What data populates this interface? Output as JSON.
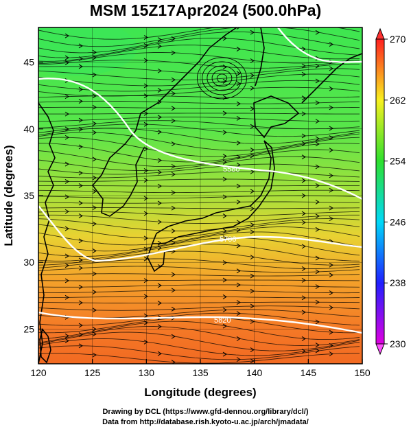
{
  "title": "MSM 15Z17Apr2024 (500.0hPa)",
  "axes": {
    "xlabel": "Longitude (degrees)",
    "ylabel": "Latitude  (degrees)",
    "xticks": [
      "120",
      "125",
      "130",
      "135",
      "140",
      "145",
      "150"
    ],
    "yticks": [
      "25",
      "30",
      "35",
      "40",
      "45"
    ],
    "xrange": [
      120,
      150
    ],
    "yrange": [
      22.4,
      47.6
    ]
  },
  "colorbar": {
    "range": [
      230,
      270
    ],
    "labels": [
      "270",
      "262",
      "254",
      "246",
      "238",
      "230"
    ],
    "colors": [
      "#f0f",
      "#00f",
      "#0ff",
      "#0f0",
      "#ff0",
      "#f00"
    ]
  },
  "contours": {
    "labels": [
      "5580",
      "5700",
      "5820"
    ],
    "color": "#ffffff"
  },
  "credits": {
    "line1": "Drawing by DCL (https://www.gfd-dennou.org/library/dcl/)",
    "line2": "Data from http://database.rish.kyoto-u.ac.jp/arch/jmadata/"
  }
}
